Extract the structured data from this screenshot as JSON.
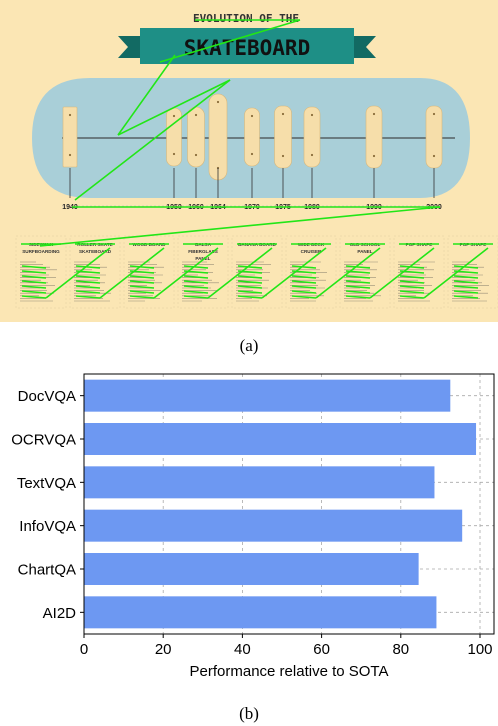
{
  "infographic": {
    "title_top": "EVOLUTION OF THE",
    "title_banner": "SKATEBOARD",
    "years": [
      "1940",
      "1950",
      "1960",
      "1964",
      "1970",
      "1975",
      "1980",
      "1990",
      "2000"
    ],
    "section_headings": [
      [
        "SIDEWALK",
        "SURFBOARDING"
      ],
      [
        "ROLLER SKATE",
        "SKATEBOARD"
      ],
      [
        "WOOD BOARD"
      ],
      [
        "BALSA",
        "FIBERGLASS",
        "PANEL"
      ],
      [
        "BANANA BOARD"
      ],
      [
        "WIDE DECK",
        "CRUISER"
      ],
      [
        "OLD SCHOOL",
        "PANEL"
      ],
      [
        "POP SHAPE"
      ],
      [
        "POP SHAPE"
      ]
    ],
    "colors": {
      "background": "#fbe6b4",
      "oval": "#a9cfd8",
      "board": "#f6deaa",
      "banner": "#1e8f86",
      "banner_dark": "#126a63",
      "overlay": "#22e617"
    }
  },
  "captions": {
    "a": "(a)",
    "b": "(b)"
  },
  "chart_data": {
    "type": "bar",
    "orientation": "horizontal",
    "categories": [
      "DocVQA",
      "OCRVQA",
      "TextVQA",
      "InfoVQA",
      "ChartQA",
      "AI2D"
    ],
    "values": [
      92.5,
      99,
      88.5,
      95.5,
      84.5,
      89
    ],
    "xlabel": "Performance relative to SOTA",
    "ylabel": "",
    "xlim": [
      0,
      100
    ],
    "xticks": [
      0,
      20,
      40,
      60,
      80,
      100
    ],
    "grid": "x-dashed",
    "colors": {
      "bar": "#6d98f2",
      "grid": "#a8a8a8",
      "axis": "#000000"
    }
  }
}
